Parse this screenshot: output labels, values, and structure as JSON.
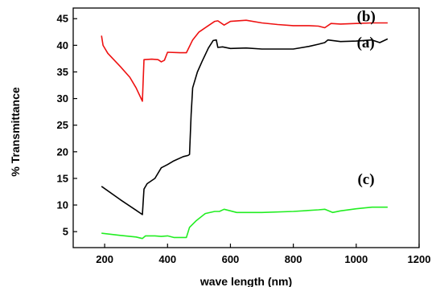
{
  "chart_data": {
    "type": "line",
    "xlabel": "wave length (nm)",
    "ylabel": "% Transmittance",
    "xlim": [
      100,
      1200
    ],
    "ylim": [
      2,
      47
    ],
    "xticks": [
      200,
      400,
      600,
      800,
      1000,
      1200
    ],
    "yticks": [
      5,
      10,
      15,
      20,
      25,
      30,
      35,
      40,
      45
    ],
    "grid": false,
    "series": [
      {
        "name": "(a)",
        "color": "#000000",
        "points": [
          [
            190,
            13.5
          ],
          [
            250,
            11
          ],
          [
            300,
            9
          ],
          [
            320,
            8.2
          ],
          [
            325,
            13
          ],
          [
            335,
            14
          ],
          [
            360,
            15
          ],
          [
            380,
            17
          ],
          [
            400,
            17.6
          ],
          [
            420,
            18.3
          ],
          [
            450,
            19.1
          ],
          [
            465,
            19.3
          ],
          [
            470,
            19.5
          ],
          [
            475,
            27
          ],
          [
            480,
            32
          ],
          [
            495,
            35
          ],
          [
            510,
            37
          ],
          [
            530,
            39.5
          ],
          [
            545,
            40.9
          ],
          [
            555,
            41
          ],
          [
            560,
            39.6
          ],
          [
            575,
            39.7
          ],
          [
            600,
            39.4
          ],
          [
            650,
            39.5
          ],
          [
            700,
            39.3
          ],
          [
            800,
            39.3
          ],
          [
            850,
            39.8
          ],
          [
            880,
            40.2
          ],
          [
            900,
            40.5
          ],
          [
            910,
            41
          ],
          [
            950,
            40.7
          ],
          [
            1000,
            40.8
          ],
          [
            1050,
            41
          ],
          [
            1075,
            40.5
          ],
          [
            1100,
            41.2
          ]
        ]
      },
      {
        "name": "(b)",
        "color": "#ee1111",
        "points": [
          [
            190,
            41.8
          ],
          [
            195,
            40
          ],
          [
            210,
            38.5
          ],
          [
            250,
            36
          ],
          [
            280,
            34
          ],
          [
            300,
            32
          ],
          [
            320,
            29.5
          ],
          [
            325,
            37.3
          ],
          [
            350,
            37.4
          ],
          [
            370,
            37.3
          ],
          [
            380,
            36.9
          ],
          [
            390,
            37.2
          ],
          [
            400,
            38.7
          ],
          [
            440,
            38.6
          ],
          [
            460,
            38.6
          ],
          [
            480,
            41
          ],
          [
            500,
            42.5
          ],
          [
            525,
            43.5
          ],
          [
            550,
            44.5
          ],
          [
            560,
            44.6
          ],
          [
            580,
            43.8
          ],
          [
            600,
            44.5
          ],
          [
            650,
            44.7
          ],
          [
            700,
            44.2
          ],
          [
            750,
            43.9
          ],
          [
            800,
            43.7
          ],
          [
            850,
            43.7
          ],
          [
            880,
            43.6
          ],
          [
            900,
            43.3
          ],
          [
            920,
            44.1
          ],
          [
            950,
            44
          ],
          [
            1000,
            44.1
          ],
          [
            1050,
            44.2
          ],
          [
            1100,
            44.2
          ]
        ]
      },
      {
        "name": "(c)",
        "color": "#22ee22",
        "points": [
          [
            190,
            4.7
          ],
          [
            250,
            4.3
          ],
          [
            300,
            4
          ],
          [
            320,
            3.7
          ],
          [
            330,
            4.2
          ],
          [
            360,
            4.2
          ],
          [
            380,
            4.1
          ],
          [
            400,
            4.2
          ],
          [
            420,
            3.9
          ],
          [
            460,
            3.9
          ],
          [
            470,
            5.8
          ],
          [
            490,
            7
          ],
          [
            520,
            8.4
          ],
          [
            550,
            8.8
          ],
          [
            565,
            8.8
          ],
          [
            580,
            9.2
          ],
          [
            600,
            8.9
          ],
          [
            620,
            8.6
          ],
          [
            700,
            8.6
          ],
          [
            800,
            8.8
          ],
          [
            880,
            9.1
          ],
          [
            900,
            9.2
          ],
          [
            925,
            8.6
          ],
          [
            950,
            8.9
          ],
          [
            1000,
            9.3
          ],
          [
            1050,
            9.6
          ],
          [
            1100,
            9.6
          ]
        ]
      }
    ]
  }
}
